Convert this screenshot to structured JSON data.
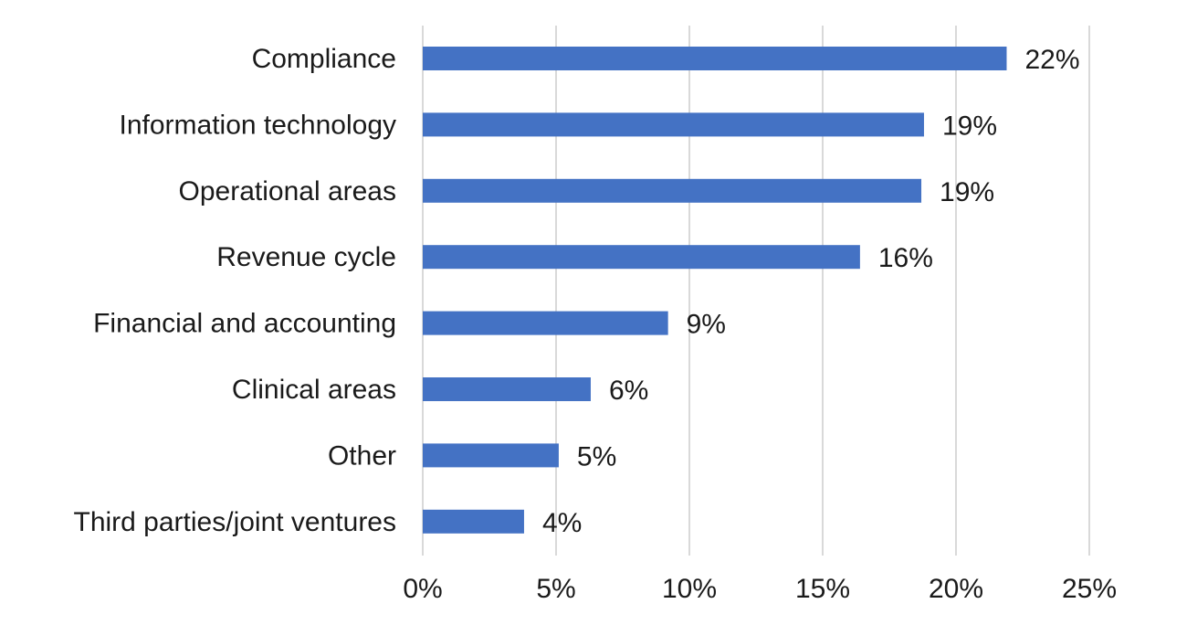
{
  "chart_data": {
    "type": "bar",
    "orientation": "horizontal",
    "categories": [
      "Compliance",
      "Information technology",
      "Operational areas",
      "Revenue cycle",
      "Financial and accounting",
      "Clinical areas",
      "Other",
      "Third parties/joint ventures"
    ],
    "values": [
      21.9,
      18.8,
      18.7,
      16.4,
      9.2,
      6.3,
      5.1,
      3.8
    ],
    "data_labels": [
      "22%",
      "19%",
      "19%",
      "16%",
      "9%",
      "6%",
      "5%",
      "4%"
    ],
    "xlim": [
      0,
      25
    ],
    "x_ticks": [
      0,
      5,
      10,
      15,
      20,
      25
    ],
    "x_tick_labels": [
      "0%",
      "5%",
      "10%",
      "15%",
      "20%",
      "25%"
    ],
    "grid": "vertical",
    "legend": "none",
    "bar_color": "#4472C4",
    "grid_color": "#D9D9D9"
  }
}
